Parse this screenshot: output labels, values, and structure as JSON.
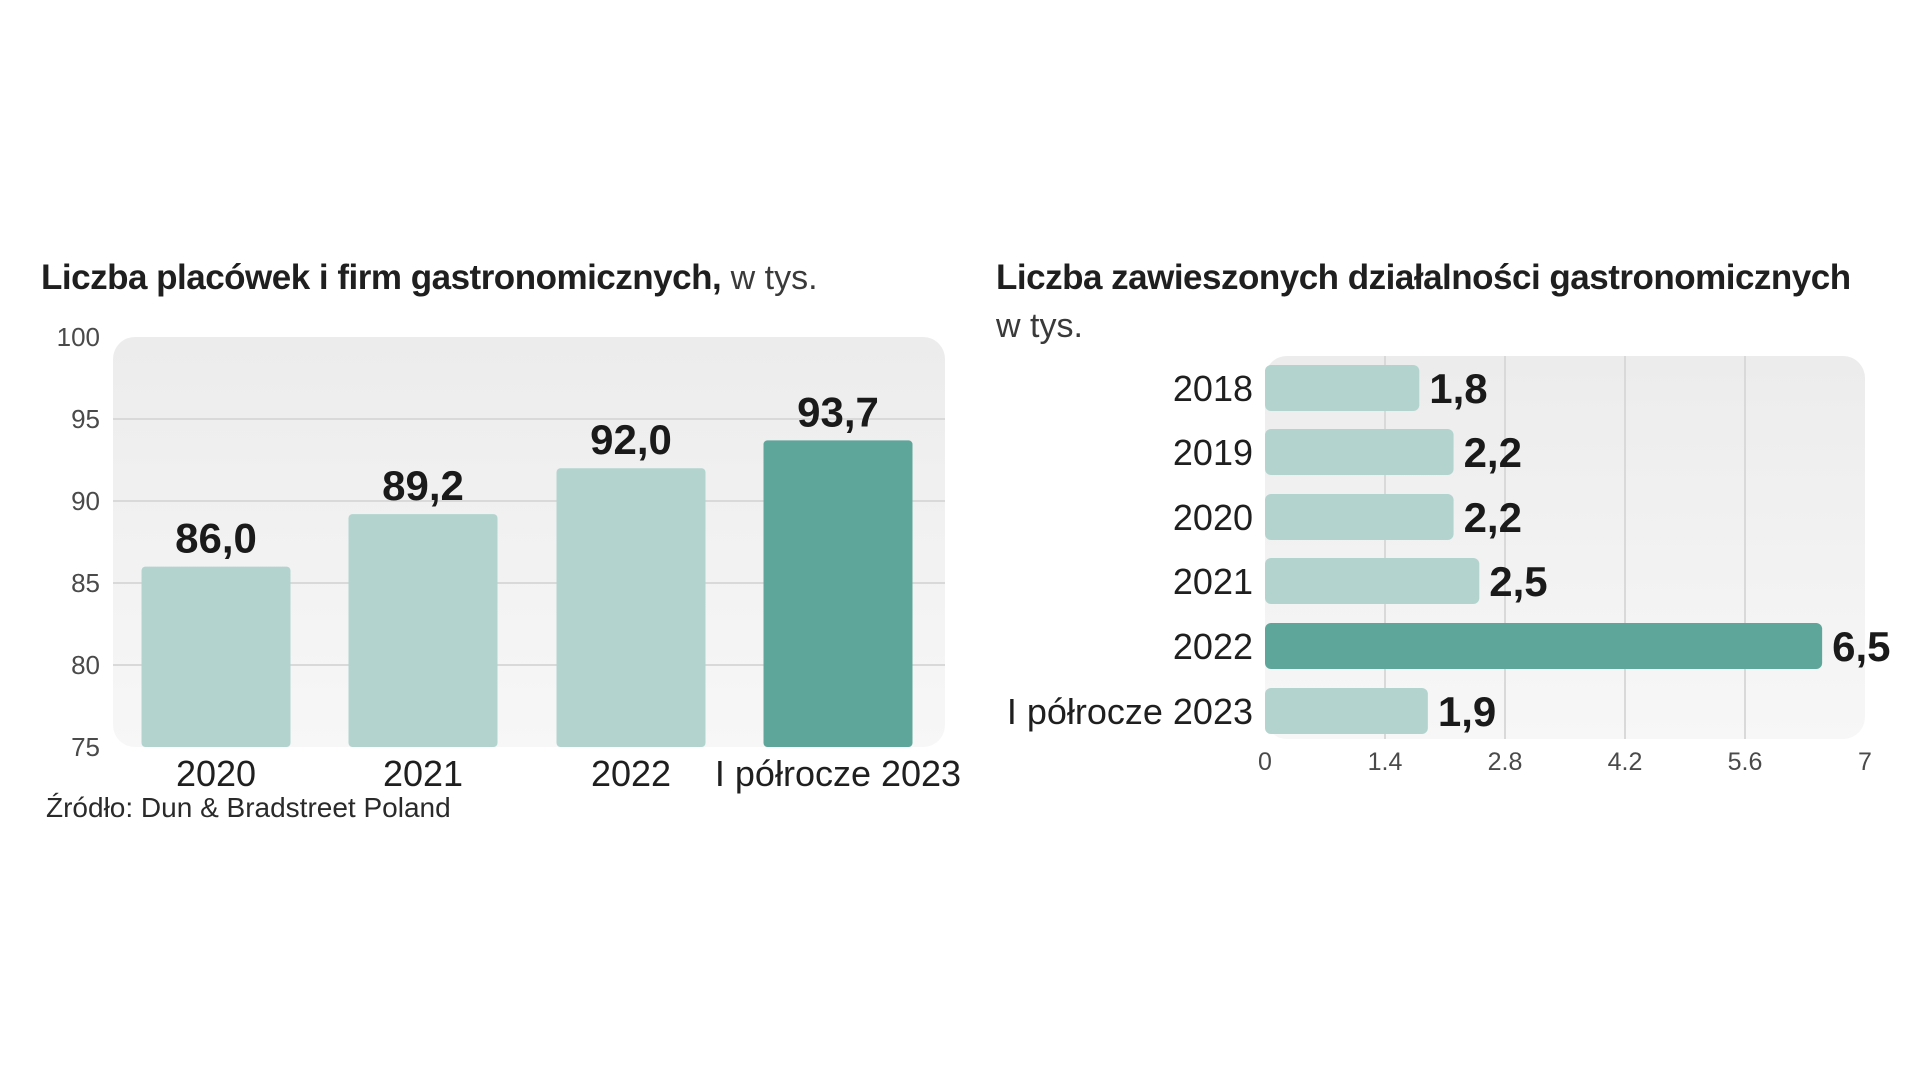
{
  "colors": {
    "bar_light": "#b3d4ce",
    "bar_highlight": "#5fa69a",
    "panel_bg_top": "#ececec",
    "panel_bg_bottom": "#f7f7f7",
    "gridline": "#d9d9d9"
  },
  "left_chart": {
    "title_bold": "Liczba placówek i firm gastronomicznych,",
    "title_light": " w tys.",
    "source": "Źródło: Dun & Bradstreet Poland"
  },
  "right_chart": {
    "title_bold": "Liczba zawieszonych działalności gastronomicznych",
    "title_light": "w tys."
  },
  "chart_data": [
    {
      "type": "bar",
      "orientation": "vertical",
      "title": "Liczba placówek i firm gastronomicznych, w tys.",
      "categories": [
        "2020",
        "2021",
        "2022",
        "I półrocze 2023"
      ],
      "values": [
        86.0,
        89.2,
        92.0,
        93.7
      ],
      "value_labels": [
        "86,0",
        "89,2",
        "92,0",
        "93,7"
      ],
      "highlight_index": 3,
      "ylim": [
        75,
        100
      ],
      "y_ticks": [
        "100",
        "95",
        "90",
        "85",
        "80",
        "75"
      ],
      "grid": true
    },
    {
      "type": "bar",
      "orientation": "horizontal",
      "title": "Liczba zawieszonych działalności gastronomicznych w tys.",
      "categories": [
        "2018",
        "2019",
        "2020",
        "2021",
        "2022",
        "I półrocze 2023"
      ],
      "values": [
        1.8,
        2.2,
        2.2,
        2.5,
        6.5,
        1.9
      ],
      "value_labels": [
        "1,8",
        "2,2",
        "2,2",
        "2,5",
        "6,5",
        "1,9"
      ],
      "highlight_index": 4,
      "xlim": [
        0,
        7
      ],
      "x_ticks": [
        "0",
        "1.4",
        "2.8",
        "4.2",
        "5.6",
        "7"
      ],
      "grid": true
    }
  ]
}
